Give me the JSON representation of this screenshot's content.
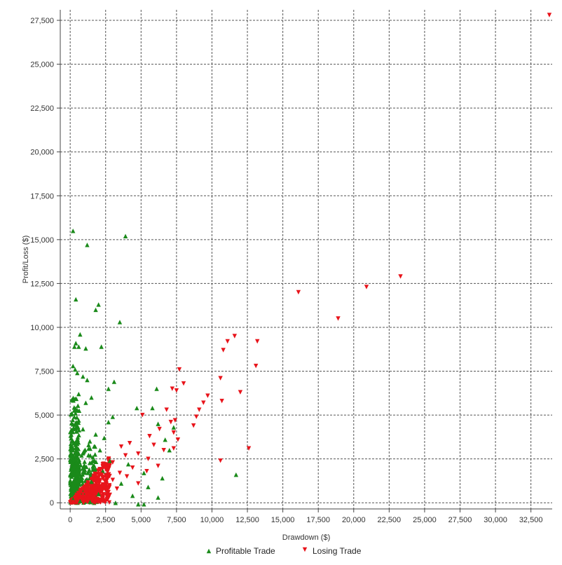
{
  "chart_data": {
    "type": "scatter",
    "xlabel": "Drawdown ($)",
    "ylabel": "Profit/Loss ($)",
    "xlim": [
      -700,
      34000
    ],
    "ylim": [
      -350,
      28100
    ],
    "x_ticks": [
      0,
      2500,
      5000,
      7500,
      10000,
      12500,
      15000,
      17500,
      20000,
      22500,
      25000,
      27500,
      30000,
      32500
    ],
    "x_tick_labels": [
      "0",
      "2,500",
      "5,000",
      "7,500",
      "10,000",
      "12,500",
      "15,000",
      "17,500",
      "20,000",
      "22,500",
      "25,000",
      "27,500",
      "30,000",
      "32,500"
    ],
    "y_ticks": [
      0,
      2500,
      5000,
      7500,
      10000,
      12500,
      15000,
      17500,
      20000,
      22500,
      25000,
      27500
    ],
    "y_tick_labels": [
      "0",
      "2,500",
      "5,000",
      "7,500",
      "10,000",
      "12,500",
      "15,000",
      "17,500",
      "20,000",
      "22,500",
      "25,000",
      "27,500"
    ],
    "grid": true,
    "legend_position": "bottom-center",
    "series": [
      {
        "name": "Profitable Trade",
        "marker": "triangle-up",
        "color": "#1a8a1a",
        "points": [
          [
            200,
            15500
          ],
          [
            1200,
            14700
          ],
          [
            3900,
            15200
          ],
          [
            400,
            11600
          ],
          [
            2000,
            11300
          ],
          [
            1800,
            11000
          ],
          [
            3500,
            10300
          ],
          [
            700,
            9600
          ],
          [
            400,
            9100
          ],
          [
            300,
            8900
          ],
          [
            600,
            8900
          ],
          [
            1100,
            8800
          ],
          [
            2200,
            8900
          ],
          [
            200,
            7800
          ],
          [
            350,
            7600
          ],
          [
            500,
            7400
          ],
          [
            900,
            7200
          ],
          [
            1200,
            7000
          ],
          [
            3100,
            6900
          ],
          [
            2700,
            6500
          ],
          [
            6100,
            6500
          ],
          [
            600,
            6200
          ],
          [
            1500,
            6000
          ],
          [
            1100,
            5700
          ],
          [
            4700,
            5400
          ],
          [
            5800,
            5400
          ],
          [
            3000,
            4900
          ],
          [
            600,
            4700
          ],
          [
            2700,
            4600
          ],
          [
            6200,
            4500
          ],
          [
            7300,
            4300
          ],
          [
            900,
            4200
          ],
          [
            1800,
            3900
          ],
          [
            2400,
            3700
          ],
          [
            6700,
            3600
          ],
          [
            200,
            3500
          ],
          [
            1300,
            3300
          ],
          [
            2100,
            3000
          ],
          [
            7000,
            3000
          ],
          [
            400,
            2900
          ],
          [
            800,
            2700
          ],
          [
            1600,
            2600
          ],
          [
            2800,
            2400
          ],
          [
            4100,
            2200
          ],
          [
            300,
            2100
          ],
          [
            1000,
            1900
          ],
          [
            2300,
            1800
          ],
          [
            5200,
            1700
          ],
          [
            6500,
            1400
          ],
          [
            400,
            1300
          ],
          [
            1500,
            1200
          ],
          [
            3600,
            1100
          ],
          [
            5500,
            900
          ],
          [
            11700,
            1600
          ],
          [
            300,
            800
          ],
          [
            900,
            600
          ],
          [
            2000,
            500
          ],
          [
            4400,
            400
          ],
          [
            6200,
            300
          ],
          [
            200,
            200
          ],
          [
            700,
            100
          ],
          [
            1400,
            50
          ],
          [
            3200,
            0
          ],
          [
            4800,
            -80
          ],
          [
            5200,
            -80
          ],
          [
            100,
            500
          ]
        ]
      },
      {
        "name": "Losing Trade",
        "marker": "triangle-down",
        "color": "#e8141b",
        "points": [
          [
            33800,
            27800
          ],
          [
            23300,
            12900
          ],
          [
            20900,
            12300
          ],
          [
            16100,
            12000
          ],
          [
            18900,
            10500
          ],
          [
            11600,
            9500
          ],
          [
            11100,
            9200
          ],
          [
            13200,
            9200
          ],
          [
            10800,
            8700
          ],
          [
            7700,
            7600
          ],
          [
            13100,
            7800
          ],
          [
            10600,
            7100
          ],
          [
            8000,
            6800
          ],
          [
            12000,
            6300
          ],
          [
            7200,
            6500
          ],
          [
            7500,
            6400
          ],
          [
            9700,
            6100
          ],
          [
            9400,
            5700
          ],
          [
            10700,
            5800
          ],
          [
            9100,
            5300
          ],
          [
            6800,
            5300
          ],
          [
            8900,
            4900
          ],
          [
            7400,
            4700
          ],
          [
            5100,
            5000
          ],
          [
            7100,
            4600
          ],
          [
            8700,
            4400
          ],
          [
            6300,
            4200
          ],
          [
            7300,
            4000
          ],
          [
            5600,
            3800
          ],
          [
            7600,
            3600
          ],
          [
            4200,
            3400
          ],
          [
            5900,
            3300
          ],
          [
            3600,
            3200
          ],
          [
            7300,
            3100
          ],
          [
            12600,
            3100
          ],
          [
            6600,
            3000
          ],
          [
            4800,
            2800
          ],
          [
            3900,
            2700
          ],
          [
            5500,
            2500
          ],
          [
            10600,
            2400
          ],
          [
            3000,
            2300
          ],
          [
            6200,
            2100
          ],
          [
            4400,
            2000
          ],
          [
            2600,
            1900
          ],
          [
            5400,
            1800
          ],
          [
            3500,
            1700
          ],
          [
            2200,
            1600
          ],
          [
            4000,
            1500
          ],
          [
            3000,
            1300
          ],
          [
            1900,
            1200
          ],
          [
            4800,
            1100
          ],
          [
            2500,
            1000
          ],
          [
            1500,
            900
          ],
          [
            3300,
            800
          ],
          [
            1100,
            700
          ],
          [
            2100,
            600
          ],
          [
            900,
            500
          ],
          [
            2700,
            400
          ],
          [
            700,
            300
          ],
          [
            1600,
            250
          ],
          [
            400,
            150
          ],
          [
            2300,
            100
          ],
          [
            1200,
            50
          ],
          [
            200,
            30
          ]
        ]
      }
    ],
    "dense_clusters": [
      {
        "series": 0,
        "x_min": 0,
        "x_max": 650,
        "y_max": 6400,
        "count": 260
      },
      {
        "series": 0,
        "x_min": 0,
        "x_max": 1900,
        "y_max": 3600,
        "count": 180
      },
      {
        "series": 1,
        "wedge_x_max": 2800,
        "wedge_y_max": 2700,
        "count": 420
      }
    ]
  }
}
